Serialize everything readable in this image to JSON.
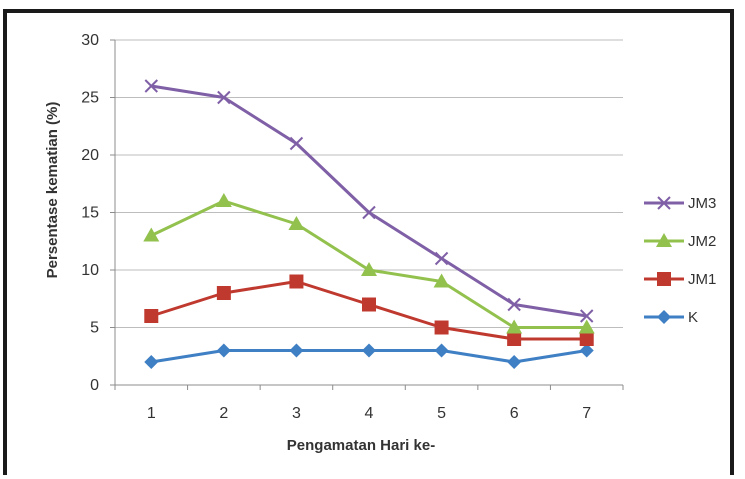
{
  "chart_data": {
    "type": "line",
    "xlabel": "Pengamatan Hari ke-",
    "ylabel": "Persentase kematian (%)",
    "categories": [
      "1",
      "2",
      "3",
      "4",
      "5",
      "6",
      "7"
    ],
    "ylim": [
      0,
      30
    ],
    "yticks": [
      "0",
      "5",
      "10",
      "15",
      "20",
      "25",
      "30"
    ],
    "grid": true,
    "legend_position": "right",
    "series": [
      {
        "name": "JM3",
        "marker": "x",
        "color": "#7f5fa6",
        "values": [
          26,
          25,
          21,
          15,
          11,
          7,
          6
        ]
      },
      {
        "name": "JM2",
        "marker": "triangle",
        "color": "#93c14e",
        "values": [
          13,
          16,
          14,
          10,
          9,
          5,
          5
        ]
      },
      {
        "name": "JM1",
        "marker": "square",
        "color": "#c0392f",
        "values": [
          6,
          8,
          9,
          7,
          5,
          4,
          4
        ]
      },
      {
        "name": "K",
        "marker": "diamond",
        "color": "#3f7fc4",
        "values": [
          2,
          3,
          3,
          3,
          3,
          2,
          3
        ]
      }
    ]
  }
}
